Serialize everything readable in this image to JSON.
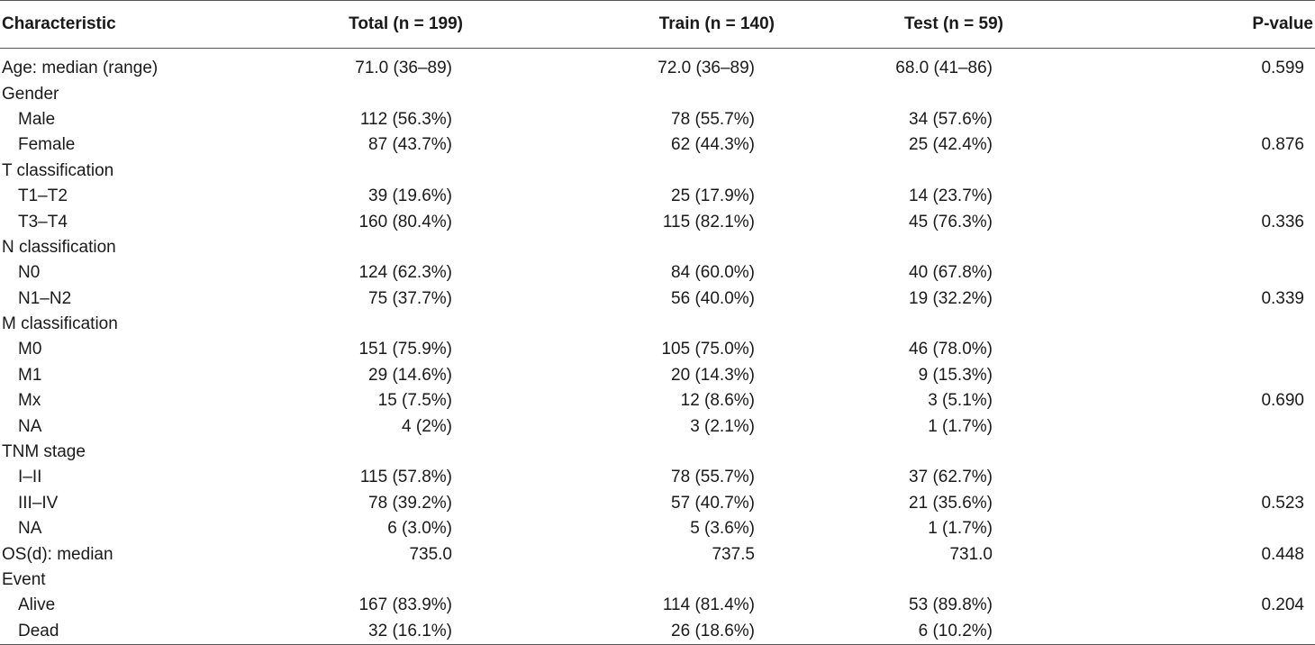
{
  "headers": {
    "characteristic": "Characteristic",
    "total": "Total (n = 199)",
    "train": "Train (n = 140)",
    "test": "Test (n = 59)",
    "pvalue": "P-value"
  },
  "rows": [
    {
      "label": "Age: median (range)",
      "indent": false,
      "total": "71.0 (36–89)",
      "train": "72.0 (36–89)",
      "test": "68.0 (41–86)",
      "p": "0.599"
    },
    {
      "label": "Gender",
      "indent": false,
      "total": "",
      "train": "",
      "test": "",
      "p": ""
    },
    {
      "label": "Male",
      "indent": true,
      "total": "112 (56.3%)",
      "train": "78 (55.7%)",
      "test": "34 (57.6%)",
      "p": ""
    },
    {
      "label": "Female",
      "indent": true,
      "total": "87 (43.7%)",
      "train": "62 (44.3%)",
      "test": "25 (42.4%)",
      "p": "0.876"
    },
    {
      "label": "T classification",
      "indent": false,
      "total": "",
      "train": "",
      "test": "",
      "p": ""
    },
    {
      "label": "T1–T2",
      "indent": true,
      "total": "39 (19.6%)",
      "train": "25 (17.9%)",
      "test": "14 (23.7%)",
      "p": ""
    },
    {
      "label": "T3–T4",
      "indent": true,
      "total": "160 (80.4%)",
      "train": "115 (82.1%)",
      "test": "45 (76.3%)",
      "p": "0.336"
    },
    {
      "label": "N classification",
      "indent": false,
      "total": "",
      "train": "",
      "test": "",
      "p": ""
    },
    {
      "label": "N0",
      "indent": true,
      "total": "124 (62.3%)",
      "train": "84 (60.0%)",
      "test": "40 (67.8%)",
      "p": ""
    },
    {
      "label": "N1–N2",
      "indent": true,
      "total": "75 (37.7%)",
      "train": "56 (40.0%)",
      "test": "19 (32.2%)",
      "p": "0.339"
    },
    {
      "label": "M classification",
      "indent": false,
      "total": "",
      "train": "",
      "test": "",
      "p": ""
    },
    {
      "label": "M0",
      "indent": true,
      "total": "151 (75.9%)",
      "train": "105 (75.0%)",
      "test": "46 (78.0%)",
      "p": ""
    },
    {
      "label": "M1",
      "indent": true,
      "total": "29 (14.6%)",
      "train": "20 (14.3%)",
      "test": "9 (15.3%)",
      "p": ""
    },
    {
      "label": "Mx",
      "indent": true,
      "total": "15 (7.5%)",
      "train": "12 (8.6%)",
      "test": "3 (5.1%)",
      "p": "0.690"
    },
    {
      "label": "NA",
      "indent": true,
      "total": "4 (2%)",
      "train": "3 (2.1%)",
      "test": "1 (1.7%)",
      "p": ""
    },
    {
      "label": "TNM stage",
      "indent": false,
      "total": "",
      "train": "",
      "test": "",
      "p": ""
    },
    {
      "label": "I–II",
      "indent": true,
      "total": "115 (57.8%)",
      "train": "78 (55.7%)",
      "test": "37 (62.7%)",
      "p": ""
    },
    {
      "label": "III–IV",
      "indent": true,
      "total": "78 (39.2%)",
      "train": "57 (40.7%)",
      "test": "21 (35.6%)",
      "p": "0.523"
    },
    {
      "label": "NA",
      "indent": true,
      "total": "6 (3.0%)",
      "train": "5 (3.6%)",
      "test": "1 (1.7%)",
      "p": ""
    },
    {
      "label": "OS(d): median",
      "indent": false,
      "total": "735.0",
      "train": "737.5",
      "test": "731.0",
      "p": "0.448"
    },
    {
      "label": "Event",
      "indent": false,
      "total": "",
      "train": "",
      "test": "",
      "p": ""
    },
    {
      "label": "Alive",
      "indent": true,
      "total": "167 (83.9%)",
      "train": "114 (81.4%)",
      "test": "53 (89.8%)",
      "p": "0.204"
    },
    {
      "label": "Dead",
      "indent": true,
      "total": "32 (16.1%)",
      "train": "26 (18.6%)",
      "test": "6 (10.2%)",
      "p": ""
    }
  ]
}
